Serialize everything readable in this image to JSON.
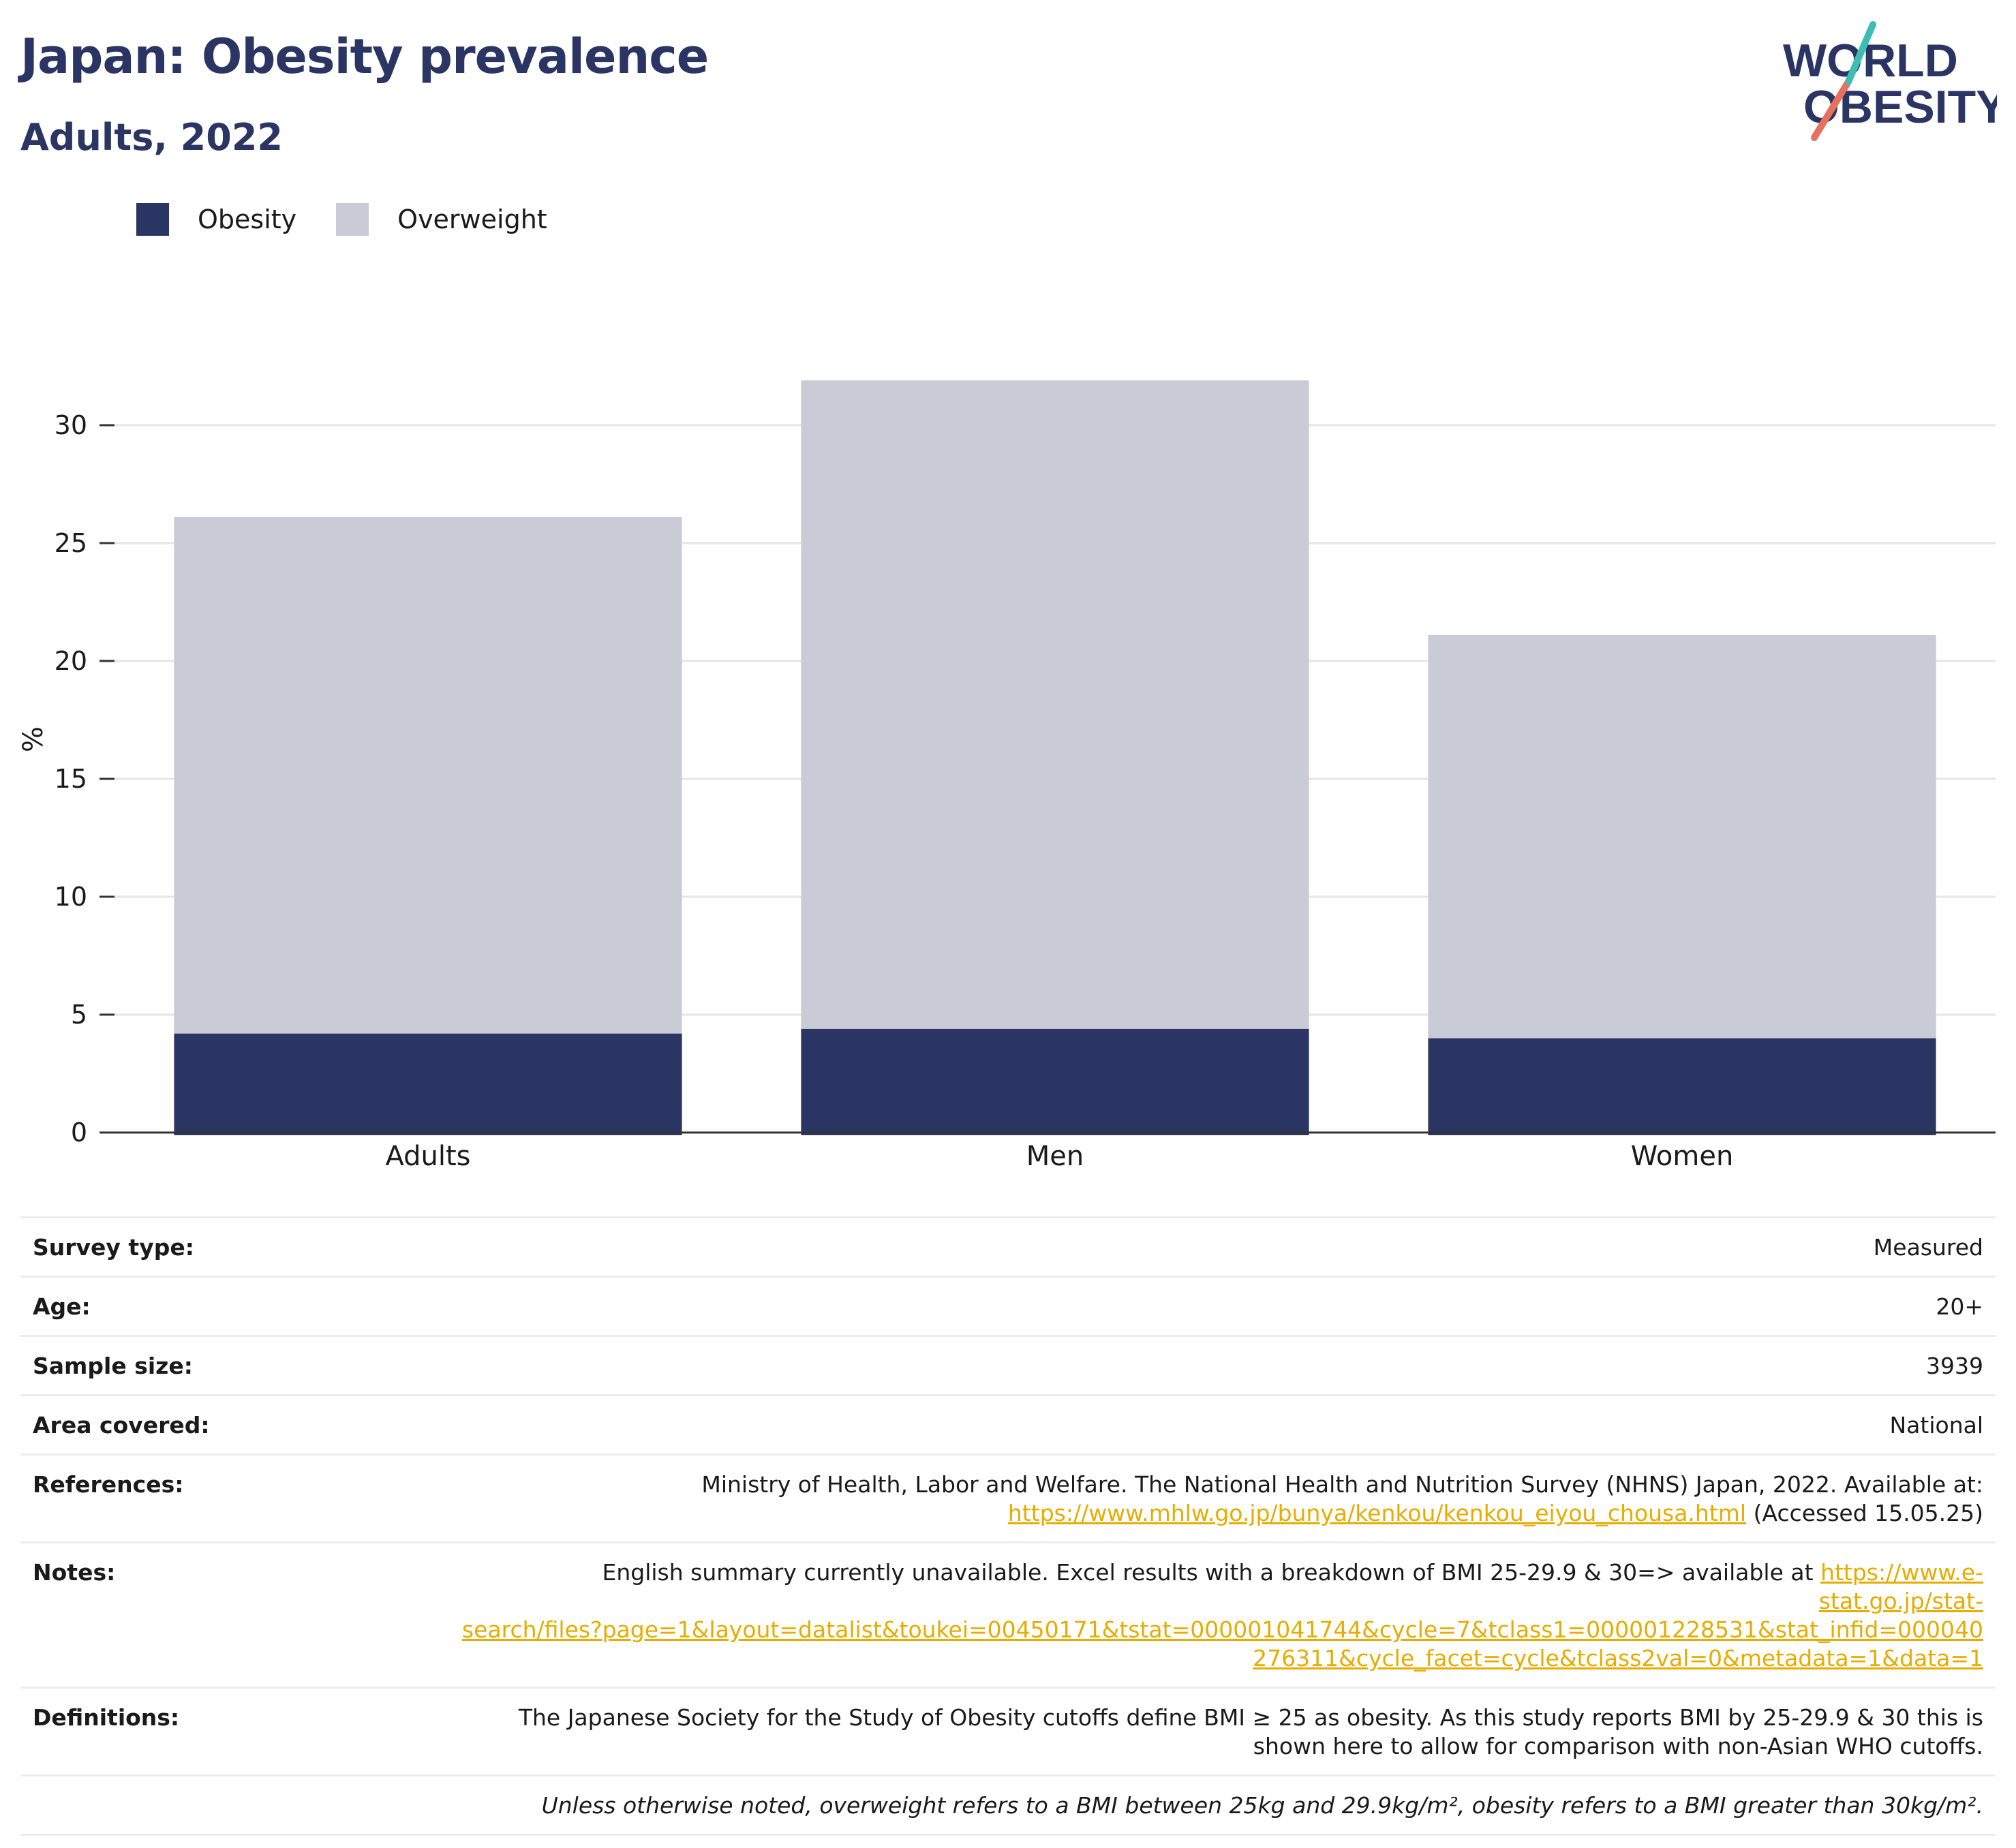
{
  "header": {
    "title": "Japan: Obesity prevalence",
    "subtitle": "Adults, 2022"
  },
  "logo": {
    "line1": "WORLD",
    "line2": "OBESITY"
  },
  "legend": [
    {
      "label": "Obesity",
      "color": "#2b3564"
    },
    {
      "label": "Overweight",
      "color": "#c9cbd6"
    }
  ],
  "chart_data": {
    "type": "bar",
    "stacked": true,
    "categories": [
      "Adults",
      "Men",
      "Women"
    ],
    "series": [
      {
        "name": "Obesity",
        "values": [
          4.2,
          4.4,
          4.0
        ],
        "color": "#2b3564"
      },
      {
        "name": "Overweight",
        "values": [
          21.9,
          27.5,
          17.1
        ],
        "color": "#c9cbd6"
      }
    ],
    "ylabel": "%",
    "ylim": [
      0,
      32
    ],
    "yticks": [
      0,
      5,
      10,
      15,
      20,
      25,
      30
    ],
    "grid": true,
    "legend_position": "top-left"
  },
  "info": {
    "survey_type_label": "Survey type:",
    "survey_type": "Measured",
    "age_label": "Age:",
    "age": "20+",
    "sample_size_label": "Sample size:",
    "sample_size": "3939",
    "area_label": "Area covered:",
    "area": "National",
    "references_label": "References:",
    "references_text": "Ministry of Health, Labor and Welfare. The National Health and Nutrition Survey (NHNS) Japan, 2022. Available at:",
    "references_link": "https://www.mhlw.go.jp/bunya/kenkou/kenkou_eiyou_chousa.html",
    "references_accessed": "(Accessed 15.05.25)",
    "notes_label": "Notes:",
    "notes_text": "English summary currently unavailable. Excel results with a breakdown of BMI 25-29.9 & 30=> available at",
    "notes_link_1": "https://www.e-",
    "notes_link_2": "stat.go.jp/stat-",
    "notes_link_3": "search/files?page=1&layout=datalist&toukei=00450171&tstat=000001041744&cycle=7&tclass1=000001228531&stat_infid=000040",
    "notes_link_4": "276311&cycle_facet=cycle&tclass2val=0&metadata=1&data=1",
    "definitions_label": "Definitions:",
    "definitions_1": "The Japanese Society for the Study of Obesity cutoffs define BMI ≥ 25 as obesity. As this study reports BMI by 25-29.9 & 30 this is",
    "definitions_2": "shown here to allow for comparison with non-Asian WHO cutoffs.",
    "footnote": "Unless otherwise noted, overweight refers to a BMI between 25kg and 29.9kg/m², obesity refers to a BMI greater than 30kg/m²."
  }
}
